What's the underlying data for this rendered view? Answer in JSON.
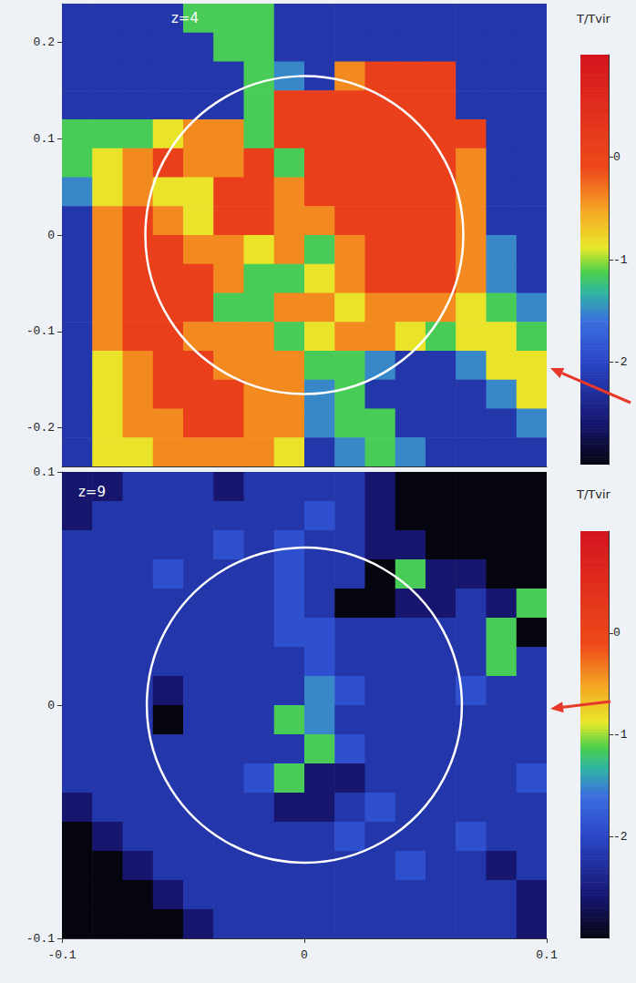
{
  "chart_data": [
    {
      "type": "heatmap",
      "label": "z=4",
      "xlim": [
        -0.25,
        0.25
      ],
      "ylim": [
        -0.24,
        0.24
      ],
      "yticks": [
        -0.2,
        -0.1,
        0,
        0.1,
        0.2
      ],
      "tick_labels": "y",
      "circle_center": [
        0,
        0
      ],
      "circle_radius": 0.164,
      "colorbar": {
        "title": "T/Tvir",
        "range": [
          -3,
          1
        ],
        "ticks": [
          -2,
          -1,
          0
        ]
      },
      "cells": [
        [
          -2.2,
          -2.2,
          -2.2,
          -2.2,
          -1.15,
          -1.15,
          -1.15,
          -2.2,
          -2.2,
          -2.2,
          -2.2,
          -2.2,
          -2.2,
          -2.2,
          -2.2,
          -2.2
        ],
        [
          -2.2,
          -2.2,
          -2.2,
          -2.2,
          -2.2,
          -1.15,
          -1.15,
          -2.2,
          -2.2,
          -2.2,
          -2.2,
          -2.2,
          -2.2,
          -2.2,
          -2.2,
          -2.2
        ],
        [
          -2.2,
          -2.2,
          -2.2,
          -2.2,
          -2.2,
          -2.2,
          -1.15,
          -1.5,
          -2.2,
          -0.4,
          0.1,
          0.1,
          0.1,
          -2.2,
          -2.2,
          -2.2
        ],
        [
          -2.2,
          -2.2,
          -2.2,
          -2.2,
          -2.2,
          -2.2,
          -1.15,
          0.1,
          0.1,
          0.1,
          0.1,
          0.1,
          0.1,
          -2.2,
          -2.2,
          -2.2
        ],
        [
          -1.15,
          -1.15,
          -1.15,
          -0.85,
          -0.4,
          -0.4,
          -1.15,
          0.1,
          0.1,
          0.1,
          0.1,
          0.1,
          0.1,
          0.1,
          -2.2,
          -2.2
        ],
        [
          -1.15,
          -0.85,
          -0.4,
          0.1,
          -0.4,
          -0.4,
          0.1,
          -1.15,
          0.1,
          0.1,
          0.1,
          0.1,
          0.1,
          -0.4,
          -2.2,
          -2.2
        ],
        [
          -1.5,
          -0.85,
          -0.4,
          -0.85,
          -0.85,
          0.1,
          0.1,
          -0.4,
          0.1,
          0.1,
          0.1,
          0.1,
          0.1,
          -0.4,
          -2.2,
          -2.2
        ],
        [
          -2.2,
          -0.4,
          0.1,
          -0.4,
          -0.85,
          0.1,
          0.1,
          -0.4,
          -0.4,
          0.1,
          0.1,
          0.1,
          0.1,
          -0.4,
          -2.2,
          -2.2
        ],
        [
          -2.2,
          -0.4,
          0.1,
          0.1,
          -0.4,
          -0.4,
          -0.85,
          -0.4,
          -1.15,
          -0.4,
          0.1,
          0.1,
          0.1,
          -0.4,
          -1.5,
          -2.2
        ],
        [
          -2.2,
          -0.4,
          0.1,
          0.1,
          0.1,
          -0.4,
          -1.15,
          -1.15,
          -0.85,
          -0.4,
          0.1,
          0.1,
          0.1,
          -0.4,
          -1.5,
          -2.2
        ],
        [
          -2.2,
          -0.4,
          0.1,
          0.1,
          0.1,
          -1.15,
          -1.15,
          -0.4,
          -0.4,
          -0.85,
          -0.4,
          -0.4,
          -0.4,
          -0.85,
          -1.15,
          -1.5
        ],
        [
          -2.2,
          -0.4,
          0.1,
          0.1,
          -0.4,
          -0.4,
          -0.4,
          -1.15,
          -0.85,
          -0.4,
          -0.4,
          -0.85,
          -1.15,
          -0.85,
          -0.85,
          -1.15
        ],
        [
          -2.2,
          -0.85,
          -0.4,
          0.1,
          0.1,
          -0.4,
          -0.4,
          -0.4,
          -1.15,
          -1.15,
          -1.5,
          -2.2,
          -2.2,
          -1.5,
          -0.85,
          -0.85
        ],
        [
          -2.2,
          -0.85,
          -0.4,
          0.1,
          0.1,
          0.1,
          -0.4,
          -0.4,
          -1.5,
          -1.15,
          -2.2,
          -2.2,
          -2.2,
          -2.2,
          -1.5,
          -0.85
        ],
        [
          -2.2,
          -0.85,
          -0.4,
          -0.4,
          0.1,
          0.1,
          -0.4,
          -0.4,
          -1.5,
          -1.15,
          -1.15,
          -2.2,
          -2.2,
          -2.2,
          -2.2,
          -1.5
        ],
        [
          -2.2,
          -0.85,
          -0.85,
          -0.4,
          -0.4,
          -0.4,
          -0.4,
          -0.85,
          -2.2,
          -1.5,
          -1.15,
          -1.5,
          -2.2,
          -2.2,
          -2.2,
          -2.2
        ]
      ]
    },
    {
      "type": "heatmap",
      "label": "z=9",
      "xlim": [
        -0.1,
        0.1
      ],
      "ylim": [
        -0.1,
        0.1
      ],
      "xticks": [
        -0.1,
        0,
        0.1
      ],
      "yticks": [
        -0.1,
        0,
        0.1
      ],
      "circle_center": [
        0,
        0
      ],
      "circle_radius": 0.065,
      "colorbar": {
        "title": "T/Tvir",
        "range": [
          -3,
          1
        ],
        "ticks": [
          -2,
          -1,
          0
        ]
      },
      "cells": [
        [
          -2.6,
          -2.6,
          -2.2,
          -2.2,
          -2.2,
          -2.6,
          -2.2,
          -2.2,
          -2.2,
          -2.2,
          -2.6,
          -3,
          -3,
          -3,
          -3,
          -3
        ],
        [
          -2.6,
          -2.2,
          -2.2,
          -2.2,
          -2.2,
          -2.2,
          -2.2,
          -2.2,
          -1.9,
          -2.2,
          -2.6,
          -3,
          -3,
          -3,
          -3,
          -3
        ],
        [
          -2.2,
          -2.2,
          -2.2,
          -2.2,
          -2.2,
          -1.9,
          -2.2,
          -1.9,
          -2.2,
          -2.2,
          -2.6,
          -2.6,
          -3,
          -3,
          -3,
          -3
        ],
        [
          -2.2,
          -2.2,
          -2.2,
          -1.9,
          -2.2,
          -2.2,
          -2.2,
          -1.9,
          -2.2,
          -2.2,
          -3,
          -1.15,
          -2.6,
          -2.6,
          -3,
          -3
        ],
        [
          -2.2,
          -2.2,
          -2.2,
          -2.2,
          -2.2,
          -2.2,
          -2.2,
          -1.9,
          -2.2,
          -3,
          -3,
          -2.6,
          -2.6,
          -2.2,
          -2.6,
          -1.15
        ],
        [
          -2.2,
          -2.2,
          -2.2,
          -2.2,
          -2.2,
          -2.2,
          -2.2,
          -1.9,
          -1.9,
          -2.2,
          -2.2,
          -2.2,
          -2.2,
          -2.2,
          -1.15,
          -3
        ],
        [
          -2.2,
          -2.2,
          -2.2,
          -2.2,
          -2.2,
          -2.2,
          -2.2,
          -2.2,
          -1.9,
          -2.2,
          -2.2,
          -2.2,
          -2.2,
          -2.2,
          -1.15,
          -2.2
        ],
        [
          -2.2,
          -2.2,
          -2.2,
          -2.6,
          -2.2,
          -2.2,
          -2.2,
          -2.2,
          -1.5,
          -1.9,
          -2.2,
          -2.2,
          -2.2,
          -1.9,
          -2.2,
          -2.2
        ],
        [
          -2.2,
          -2.2,
          -2.2,
          -3,
          -2.2,
          -2.2,
          -2.2,
          -1.15,
          -1.5,
          -2.2,
          -2.2,
          -2.2,
          -2.2,
          -2.2,
          -2.2,
          -2.2
        ],
        [
          -2.2,
          -2.2,
          -2.2,
          -2.2,
          -2.2,
          -2.2,
          -2.2,
          -2.2,
          -1.15,
          -1.9,
          -2.2,
          -2.2,
          -2.2,
          -2.2,
          -2.2,
          -2.2
        ],
        [
          -2.2,
          -2.2,
          -2.2,
          -2.2,
          -2.2,
          -2.2,
          -1.9,
          -1.15,
          -2.6,
          -2.6,
          -2.2,
          -2.2,
          -2.2,
          -2.2,
          -2.2,
          -1.9
        ],
        [
          -2.6,
          -2.2,
          -2.2,
          -2.2,
          -2.2,
          -2.2,
          -2.2,
          -2.6,
          -2.6,
          -2.2,
          -1.9,
          -2.2,
          -2.2,
          -2.2,
          -2.2,
          -2.2
        ],
        [
          -3,
          -2.6,
          -2.2,
          -2.2,
          -2.2,
          -2.2,
          -2.2,
          -2.2,
          -2.2,
          -1.9,
          -2.2,
          -2.2,
          -2.2,
          -1.9,
          -2.2,
          -2.2
        ],
        [
          -3,
          -3,
          -2.6,
          -2.2,
          -2.2,
          -2.2,
          -2.2,
          -2.2,
          -2.2,
          -2.2,
          -2.2,
          -1.9,
          -2.2,
          -2.2,
          -2.6,
          -2.2
        ],
        [
          -3,
          -3,
          -3,
          -2.6,
          -2.2,
          -2.2,
          -2.2,
          -2.2,
          -2.2,
          -2.2,
          -2.2,
          -2.2,
          -2.2,
          -2.2,
          -2.2,
          -2.6
        ],
        [
          -3,
          -3,
          -3,
          -3,
          -2.6,
          -2.2,
          -2.2,
          -2.2,
          -2.2,
          -2.2,
          -2.2,
          -2.2,
          -2.2,
          -2.2,
          -2.2,
          -2.6
        ]
      ]
    }
  ]
}
